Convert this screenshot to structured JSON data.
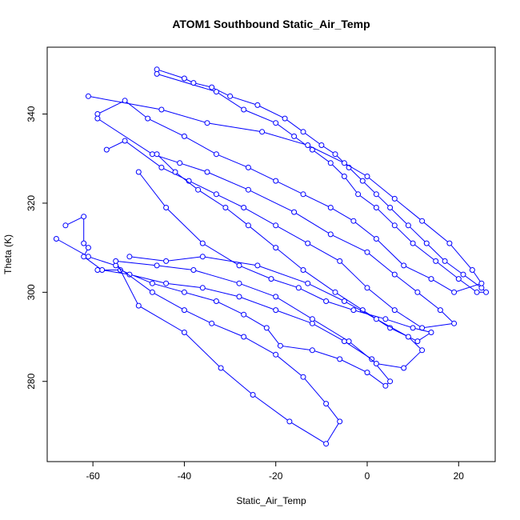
{
  "chart_data": {
    "type": "line",
    "title": "ATOM1 Southbound Static_Air_Temp",
    "xlabel": "Static_Air_Temp",
    "ylabel": "Theta (K)",
    "xlim": [
      -70,
      28
    ],
    "ylim": [
      262,
      355
    ],
    "xticks": [
      -60,
      -40,
      -20,
      0,
      20
    ],
    "yticks": [
      280,
      300,
      320,
      340
    ],
    "grid": false,
    "legend": "none",
    "series_color": "#0000ff",
    "series": [
      {
        "values": [
          [
            -46,
            350
          ],
          [
            -40,
            348
          ],
          [
            -38,
            347
          ],
          [
            -34,
            346
          ],
          [
            -30,
            344
          ],
          [
            -24,
            342
          ],
          [
            -18,
            339
          ],
          [
            -14,
            336
          ],
          [
            -10,
            333
          ],
          [
            -7,
            331
          ],
          [
            -4,
            328
          ],
          [
            -1,
            325
          ],
          [
            2,
            322
          ],
          [
            5,
            319
          ],
          [
            9,
            315
          ],
          [
            13,
            311
          ],
          [
            17,
            307
          ],
          [
            21,
            304
          ],
          [
            25,
            301
          ],
          [
            26,
            300
          ],
          [
            24,
            300
          ],
          [
            20,
            303
          ],
          [
            15,
            307
          ],
          [
            10,
            311
          ],
          [
            6,
            315
          ],
          [
            2,
            319
          ],
          [
            -2,
            322
          ],
          [
            -5,
            326
          ],
          [
            -8,
            329
          ],
          [
            -12,
            332
          ],
          [
            -16,
            335
          ],
          [
            -20,
            338
          ],
          [
            -27,
            341
          ],
          [
            -33,
            345
          ],
          [
            -46,
            349
          ]
        ]
      },
      {
        "values": [
          [
            -61,
            344
          ],
          [
            -45,
            341
          ],
          [
            -35,
            338
          ],
          [
            -23,
            336
          ],
          [
            -13,
            333
          ],
          [
            -5,
            329
          ],
          [
            0,
            326
          ],
          [
            6,
            321
          ],
          [
            12,
            316
          ],
          [
            18,
            311
          ],
          [
            23,
            305
          ],
          [
            25,
            302
          ],
          [
            19,
            300
          ],
          [
            14,
            303
          ],
          [
            8,
            306
          ],
          [
            2,
            312
          ],
          [
            -3,
            316
          ],
          [
            -8,
            319
          ],
          [
            -14,
            322
          ],
          [
            -20,
            325
          ],
          [
            -26,
            328
          ],
          [
            -33,
            331
          ],
          [
            -40,
            335
          ],
          [
            -48,
            339
          ],
          [
            -53,
            343
          ],
          [
            -59,
            340
          ]
        ]
      },
      {
        "values": [
          [
            -59,
            339
          ],
          [
            -47,
            331
          ],
          [
            -41,
            329
          ],
          [
            -35,
            327
          ],
          [
            -26,
            323
          ],
          [
            -16,
            318
          ],
          [
            -8,
            313
          ],
          [
            0,
            309
          ],
          [
            6,
            304
          ],
          [
            11,
            300
          ],
          [
            16,
            296
          ],
          [
            19,
            293
          ],
          [
            12,
            292
          ],
          [
            6,
            296
          ],
          [
            0,
            301
          ],
          [
            -6,
            307
          ],
          [
            -13,
            311
          ],
          [
            -20,
            315
          ],
          [
            -27,
            319
          ],
          [
            -33,
            322
          ],
          [
            -39,
            325
          ],
          [
            -45,
            328
          ],
          [
            -53,
            334
          ],
          [
            -57,
            332
          ]
        ]
      },
      {
        "values": [
          [
            -50,
            327
          ],
          [
            -44,
            319
          ],
          [
            -36,
            311
          ],
          [
            -28,
            306
          ],
          [
            -21,
            303
          ],
          [
            -15,
            301
          ],
          [
            -9,
            298
          ],
          [
            -3,
            296
          ],
          [
            4,
            294
          ],
          [
            10,
            292
          ],
          [
            14,
            291
          ],
          [
            11,
            289
          ],
          [
            5,
            292
          ],
          [
            -1,
            296
          ],
          [
            -7,
            300
          ],
          [
            -14,
            305
          ],
          [
            -20,
            310
          ],
          [
            -26,
            315
          ],
          [
            -31,
            319
          ],
          [
            -37,
            323
          ],
          [
            -42,
            327
          ],
          [
            -46,
            331
          ]
        ]
      },
      {
        "values": [
          [
            -66,
            315
          ],
          [
            -62,
            317
          ],
          [
            -62,
            311
          ],
          [
            -61,
            310
          ],
          [
            -62,
            308
          ],
          [
            -58,
            305
          ],
          [
            -52,
            304
          ],
          [
            -44,
            302
          ],
          [
            -36,
            301
          ],
          [
            -28,
            299
          ],
          [
            -20,
            296
          ],
          [
            -12,
            293
          ],
          [
            -5,
            289
          ],
          [
            1,
            285
          ],
          [
            5,
            280
          ],
          [
            4,
            279
          ],
          [
            0,
            282
          ],
          [
            -6,
            285
          ],
          [
            -12,
            287
          ],
          [
            -19,
            288
          ],
          [
            -22,
            292
          ],
          [
            -27,
            295
          ],
          [
            -33,
            298
          ],
          [
            -40,
            300
          ],
          [
            -47,
            302
          ],
          [
            -54,
            305
          ],
          [
            -59,
            305
          ]
        ]
      },
      {
        "values": [
          [
            -68,
            312
          ],
          [
            -61,
            308
          ],
          [
            -55,
            306
          ],
          [
            -47,
            300
          ],
          [
            -40,
            296
          ],
          [
            -34,
            293
          ],
          [
            -27,
            290
          ],
          [
            -20,
            286
          ],
          [
            -14,
            281
          ],
          [
            -9,
            275
          ],
          [
            -6,
            271
          ],
          [
            -9,
            266
          ],
          [
            -17,
            271
          ],
          [
            -25,
            277
          ],
          [
            -32,
            283
          ],
          [
            -40,
            291
          ],
          [
            -50,
            297
          ],
          [
            -55,
            307
          ],
          [
            -46,
            306
          ],
          [
            -38,
            305
          ],
          [
            -28,
            302
          ],
          [
            -20,
            299
          ],
          [
            -12,
            294
          ],
          [
            -4,
            289
          ],
          [
            2,
            284
          ],
          [
            8,
            283
          ],
          [
            12,
            287
          ],
          [
            9,
            290
          ],
          [
            2,
            294
          ],
          [
            -5,
            298
          ],
          [
            -13,
            302
          ],
          [
            -24,
            306
          ],
          [
            -36,
            308
          ],
          [
            -44,
            307
          ],
          [
            -52,
            308
          ]
        ]
      }
    ]
  }
}
